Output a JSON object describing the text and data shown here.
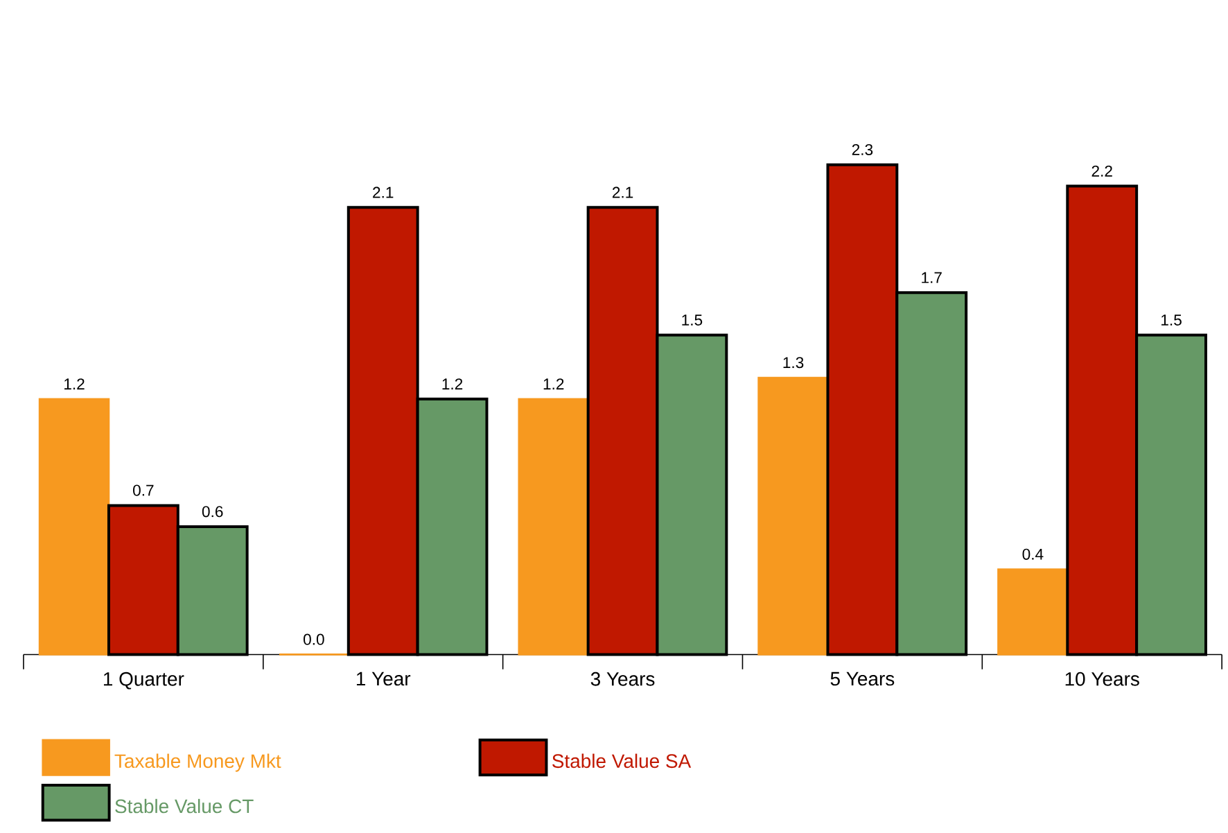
{
  "chart_data": {
    "type": "bar",
    "categories": [
      "1 Quarter",
      "1 Year",
      "3 Years",
      "5 Years",
      "10 Years"
    ],
    "series": [
      {
        "name": "Taxable Money Mkt",
        "color": "#f7991f",
        "values": [
          1.2,
          0.0,
          1.2,
          1.3,
          0.4
        ],
        "value_labels": [
          "1.2",
          "0.0",
          "1.2",
          "1.3",
          "0.4"
        ]
      },
      {
        "name": "Stable Value SA",
        "color": "#c01800",
        "values": [
          0.7,
          2.1,
          2.1,
          2.3,
          2.2
        ],
        "value_labels": [
          "0.7",
          "2.1",
          "2.1",
          "2.3",
          "2.2"
        ]
      },
      {
        "name": "Stable Value CT",
        "color": "#669966",
        "values": [
          0.6,
          1.2,
          1.5,
          1.7,
          1.5
        ],
        "value_labels": [
          "0.6",
          "1.2",
          "1.5",
          "1.7",
          "1.5"
        ]
      }
    ],
    "legend": "bottom"
  }
}
